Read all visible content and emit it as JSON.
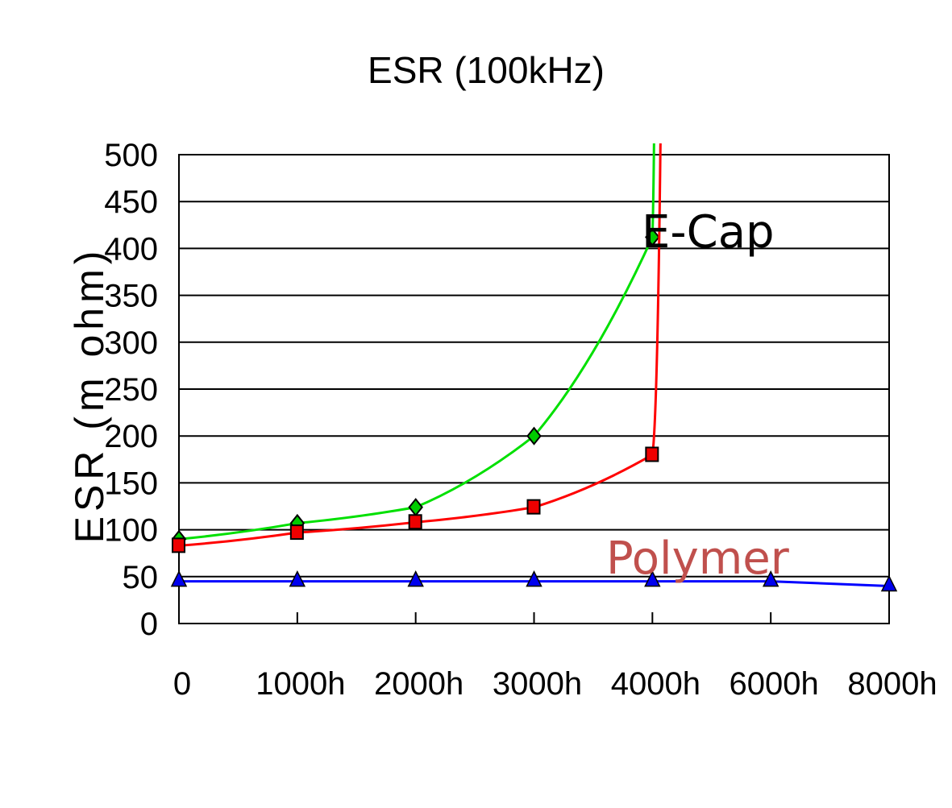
{
  "chart_data": {
    "type": "line",
    "title": "ESR (100kHz)",
    "ylabel": "ESR (m ohm)",
    "xlabel": "",
    "categories": [
      "0",
      "1000h",
      "2000h",
      "3000h",
      "4000h",
      "6000h",
      "8000h"
    ],
    "ylim": [
      0,
      500
    ],
    "yticks": [
      0,
      50,
      100,
      150,
      200,
      250,
      300,
      350,
      400,
      450,
      500
    ],
    "grid": true,
    "series": [
      {
        "color": "#00e000",
        "marker": "diamond",
        "marker_color": "#00cc00",
        "values": [
          90,
          107,
          124,
          200,
          412,
          null,
          null
        ],
        "continues_off_scale": true
      },
      {
        "color": "#ff0000",
        "marker": "square",
        "marker_color": "#ee0000",
        "values": [
          83,
          97,
          108,
          124,
          180,
          null,
          null
        ],
        "continues_off_scale": true
      },
      {
        "color": "#0000ff",
        "marker": "triangle",
        "marker_color": "#0000ee",
        "values": [
          45,
          45,
          45,
          45,
          45,
          45,
          40
        ]
      }
    ],
    "annotations": [
      {
        "text": "E-Cap",
        "style": "ecap"
      },
      {
        "text": "Polymer",
        "style": "poly"
      }
    ]
  }
}
